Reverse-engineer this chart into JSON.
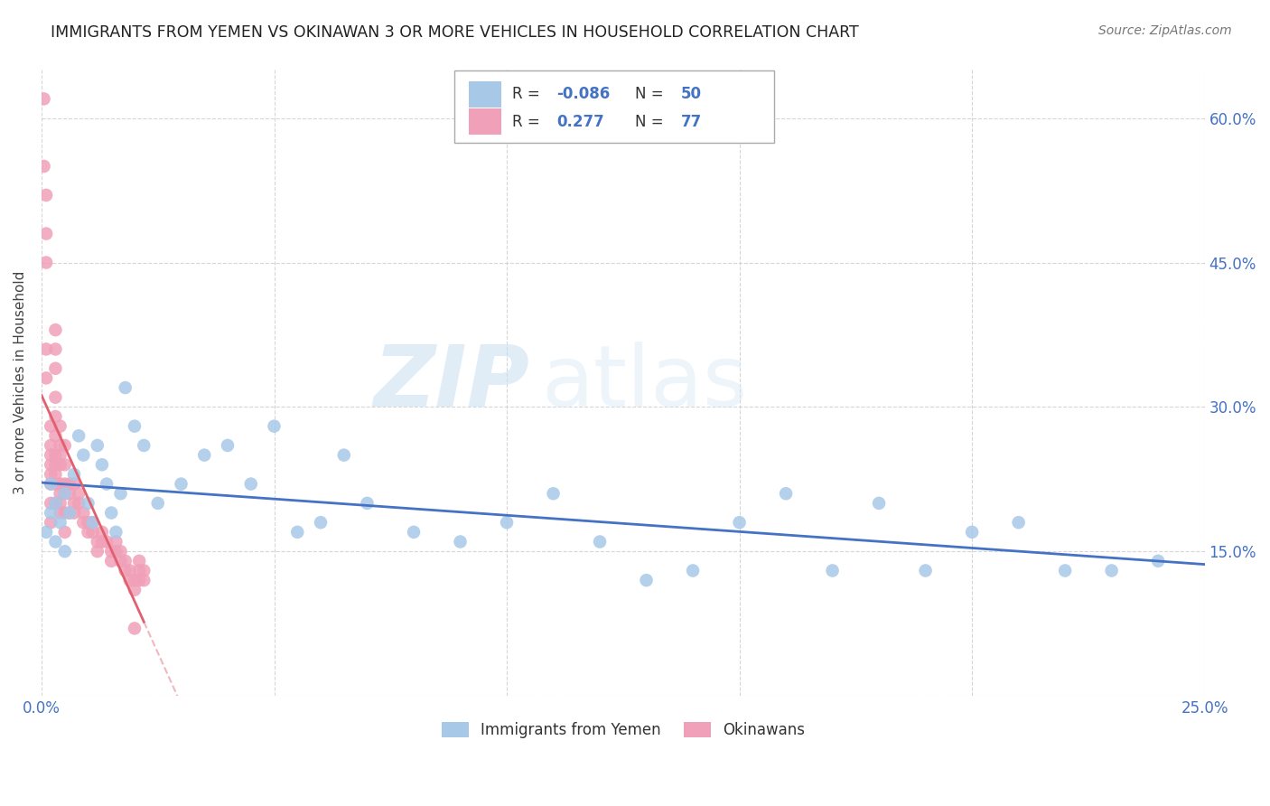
{
  "title": "IMMIGRANTS FROM YEMEN VS OKINAWAN 3 OR MORE VEHICLES IN HOUSEHOLD CORRELATION CHART",
  "source": "Source: ZipAtlas.com",
  "ylabel": "3 or more Vehicles in Household",
  "xmin": 0.0,
  "xmax": 0.25,
  "ymin": 0.0,
  "ymax": 0.65,
  "xticks": [
    0.0,
    0.05,
    0.1,
    0.15,
    0.2,
    0.25
  ],
  "xtick_labels": [
    "0.0%",
    "",
    "",
    "",
    "",
    "25.0%"
  ],
  "yticks_right": [
    0.15,
    0.3,
    0.45,
    0.6
  ],
  "ytick_labels_right": [
    "15.0%",
    "30.0%",
    "45.0%",
    "60.0%"
  ],
  "color_yemen": "#a8c8e8",
  "color_okinawan": "#f0a0b8",
  "color_trend_yemen": "#4472c4",
  "color_trend_okinawan": "#e06070",
  "watermark_zip": "ZIP",
  "watermark_atlas": "atlas",
  "yemen_x": [
    0.001,
    0.002,
    0.002,
    0.003,
    0.003,
    0.004,
    0.005,
    0.005,
    0.006,
    0.007,
    0.008,
    0.009,
    0.01,
    0.011,
    0.012,
    0.013,
    0.014,
    0.015,
    0.016,
    0.017,
    0.018,
    0.02,
    0.022,
    0.025,
    0.03,
    0.035,
    0.04,
    0.045,
    0.05,
    0.055,
    0.06,
    0.065,
    0.07,
    0.08,
    0.09,
    0.1,
    0.11,
    0.12,
    0.13,
    0.14,
    0.15,
    0.16,
    0.17,
    0.18,
    0.19,
    0.2,
    0.21,
    0.22,
    0.23,
    0.24
  ],
  "yemen_y": [
    0.17,
    0.19,
    0.22,
    0.16,
    0.2,
    0.18,
    0.15,
    0.21,
    0.19,
    0.23,
    0.27,
    0.25,
    0.2,
    0.18,
    0.26,
    0.24,
    0.22,
    0.19,
    0.17,
    0.21,
    0.32,
    0.28,
    0.26,
    0.2,
    0.22,
    0.25,
    0.26,
    0.22,
    0.28,
    0.17,
    0.18,
    0.25,
    0.2,
    0.17,
    0.16,
    0.18,
    0.21,
    0.16,
    0.12,
    0.13,
    0.18,
    0.21,
    0.13,
    0.2,
    0.13,
    0.17,
    0.18,
    0.13,
    0.13,
    0.14
  ],
  "okinawan_x": [
    0.0005,
    0.0005,
    0.001,
    0.001,
    0.001,
    0.001,
    0.001,
    0.002,
    0.002,
    0.002,
    0.002,
    0.002,
    0.002,
    0.002,
    0.002,
    0.003,
    0.003,
    0.003,
    0.003,
    0.003,
    0.003,
    0.003,
    0.003,
    0.003,
    0.003,
    0.003,
    0.004,
    0.004,
    0.004,
    0.004,
    0.004,
    0.004,
    0.004,
    0.004,
    0.005,
    0.005,
    0.005,
    0.005,
    0.005,
    0.005,
    0.006,
    0.006,
    0.006,
    0.007,
    0.007,
    0.007,
    0.008,
    0.008,
    0.009,
    0.009,
    0.01,
    0.01,
    0.011,
    0.011,
    0.012,
    0.012,
    0.013,
    0.013,
    0.014,
    0.015,
    0.015,
    0.016,
    0.016,
    0.017,
    0.017,
    0.018,
    0.018,
    0.019,
    0.019,
    0.02,
    0.02,
    0.02,
    0.021,
    0.021,
    0.021,
    0.022,
    0.022
  ],
  "okinawan_y": [
    0.62,
    0.55,
    0.52,
    0.48,
    0.45,
    0.36,
    0.33,
    0.28,
    0.26,
    0.25,
    0.24,
    0.23,
    0.22,
    0.2,
    0.18,
    0.38,
    0.36,
    0.34,
    0.31,
    0.29,
    0.27,
    0.25,
    0.24,
    0.23,
    0.22,
    0.2,
    0.28,
    0.26,
    0.25,
    0.24,
    0.22,
    0.21,
    0.2,
    0.19,
    0.26,
    0.24,
    0.22,
    0.21,
    0.19,
    0.17,
    0.22,
    0.21,
    0.19,
    0.22,
    0.2,
    0.19,
    0.21,
    0.2,
    0.19,
    0.18,
    0.18,
    0.17,
    0.18,
    0.17,
    0.16,
    0.15,
    0.17,
    0.16,
    0.16,
    0.15,
    0.14,
    0.16,
    0.15,
    0.15,
    0.14,
    0.14,
    0.13,
    0.13,
    0.12,
    0.12,
    0.11,
    0.07,
    0.14,
    0.13,
    0.12,
    0.13,
    0.12
  ]
}
